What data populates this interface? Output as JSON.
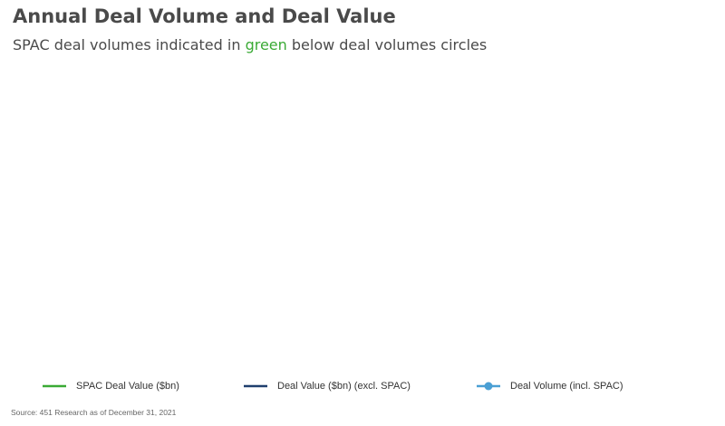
{
  "title_pre": "Annual Deal Volume and Deal Value",
  "subtitle": {
    "before": "SPAC deal volumes indicated in ",
    "highlight": "green",
    "after": " below deal volumes circles"
  },
  "colors": {
    "spac": "#3aaa35",
    "deal_value": "#1f3f6e",
    "deal_volume": "#4a9fd4"
  },
  "legend": [
    {
      "label": "SPAC Deal Value ($bn)",
      "marker": "line",
      "color": "#3aaa35"
    },
    {
      "label": "Deal Value ($bn) (excl. SPAC)",
      "marker": "line",
      "color": "#1f3f6e"
    },
    {
      "label": "Deal Volume (incl. SPAC)",
      "marker": "line-dot",
      "color": "#4a9fd4"
    }
  ],
  "source": "Source: 451 Research as of December 31, 2021",
  "chart_data": {
    "type": "bar",
    "title": "Annual Deal Volume and Deal Value",
    "subtitle": "SPAC deal volumes indicated in green below deal volumes circles",
    "categories": [],
    "series": [
      {
        "name": "SPAC Deal Value ($bn)",
        "values": []
      },
      {
        "name": "Deal Value ($bn) (excl. SPAC)",
        "values": []
      },
      {
        "name": "Deal Volume (incl. SPAC)",
        "values": []
      }
    ],
    "legend_position": "bottom"
  }
}
